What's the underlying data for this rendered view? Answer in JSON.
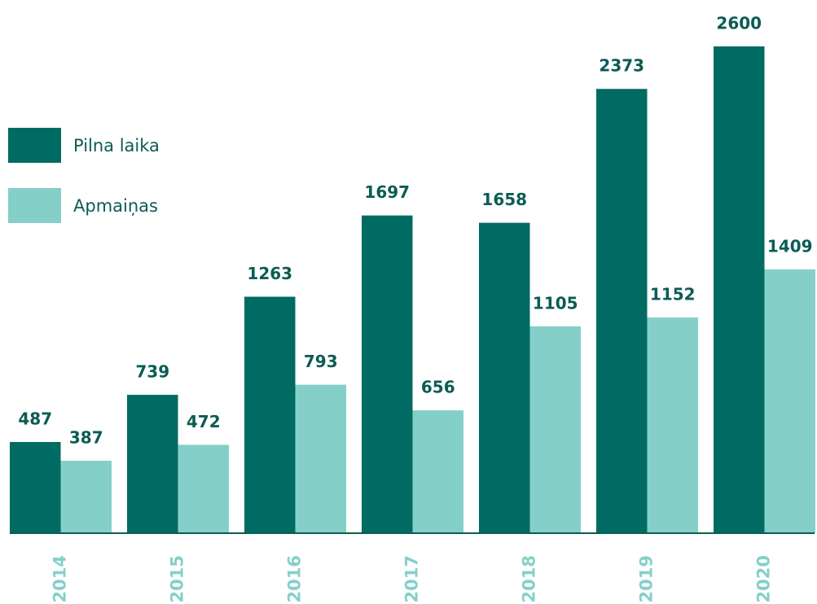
{
  "chart_data": {
    "type": "bar",
    "categories": [
      "2014",
      "2015",
      "2016",
      "2017",
      "2018",
      "2019",
      "2020"
    ],
    "series": [
      {
        "name": "Pilna laika",
        "color": "#006b63",
        "values": [
          487,
          739,
          1263,
          1697,
          1658,
          2373,
          2600
        ]
      },
      {
        "name": "Apmaiņas",
        "color": "#84d0c9",
        "values": [
          387,
          472,
          793,
          656,
          1105,
          1152,
          1409
        ]
      }
    ]
  }
}
